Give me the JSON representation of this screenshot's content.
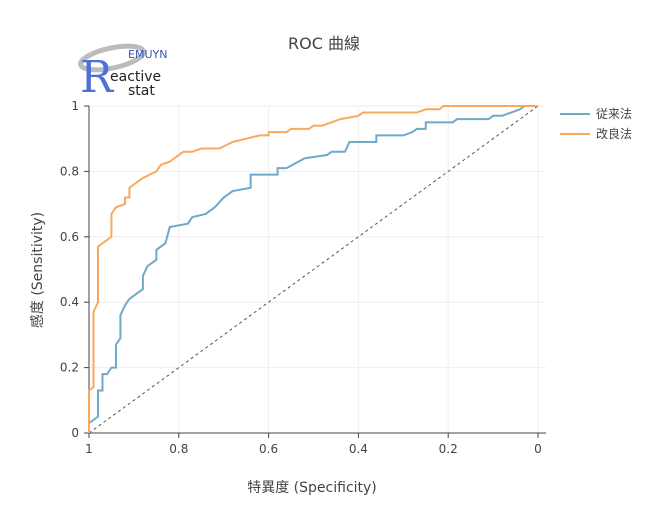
{
  "logo": {
    "letter": "R",
    "brand": "EMUYN",
    "word1": "eactive",
    "word2": "stat"
  },
  "chart_data": {
    "type": "line",
    "title": "ROC 曲線",
    "x_label": "特異度 (Specificity)",
    "y_label": "感度 (Sensitivity)",
    "xlim": [
      1,
      0
    ],
    "ylim": [
      0,
      1
    ],
    "xticks": [
      1,
      0.8,
      0.6,
      0.4,
      0.2,
      0
    ],
    "yticks": [
      0,
      0.2,
      0.4,
      0.6,
      0.8,
      1
    ],
    "grid": true,
    "legend": "right",
    "series": [
      {
        "name": "従来法",
        "color": "#6fa8c9",
        "x": [
          1,
          1,
          0.98,
          0.98,
          0.97,
          0.97,
          0.96,
          0.95,
          0.94,
          0.94,
          0.93,
          0.93,
          0.92,
          0.91,
          0.88,
          0.88,
          0.87,
          0.85,
          0.85,
          0.83,
          0.82,
          0.78,
          0.77,
          0.74,
          0.72,
          0.7,
          0.68,
          0.64,
          0.64,
          0.58,
          0.58,
          0.56,
          0.52,
          0.47,
          0.46,
          0.43,
          0.42,
          0.36,
          0.36,
          0.3,
          0.28,
          0.27,
          0.25,
          0.25,
          0.19,
          0.18,
          0.11,
          0.1,
          0.08,
          0.06,
          0.04,
          0.03,
          0
        ],
        "values": [
          0,
          0.03,
          0.05,
          0.13,
          0.13,
          0.18,
          0.18,
          0.2,
          0.2,
          0.27,
          0.29,
          0.36,
          0.39,
          0.41,
          0.44,
          0.48,
          0.51,
          0.53,
          0.56,
          0.58,
          0.63,
          0.64,
          0.66,
          0.67,
          0.69,
          0.72,
          0.74,
          0.75,
          0.79,
          0.79,
          0.81,
          0.81,
          0.84,
          0.85,
          0.86,
          0.86,
          0.89,
          0.89,
          0.91,
          0.91,
          0.92,
          0.93,
          0.93,
          0.95,
          0.95,
          0.96,
          0.96,
          0.97,
          0.97,
          0.98,
          0.99,
          1,
          1
        ]
      },
      {
        "name": "改良法",
        "color": "#f9a95e",
        "x": [
          1,
          1,
          0.99,
          0.99,
          0.98,
          0.98,
          0.97,
          0.95,
          0.95,
          0.94,
          0.92,
          0.92,
          0.91,
          0.91,
          0.89,
          0.88,
          0.85,
          0.84,
          0.82,
          0.79,
          0.77,
          0.75,
          0.71,
          0.68,
          0.65,
          0.62,
          0.6,
          0.6,
          0.56,
          0.55,
          0.51,
          0.5,
          0.48,
          0.44,
          0.4,
          0.39,
          0.27,
          0.25,
          0.22,
          0.21,
          0
        ],
        "values": [
          0,
          0.13,
          0.14,
          0.37,
          0.4,
          0.57,
          0.58,
          0.6,
          0.67,
          0.69,
          0.7,
          0.72,
          0.72,
          0.75,
          0.77,
          0.78,
          0.8,
          0.82,
          0.83,
          0.86,
          0.86,
          0.87,
          0.87,
          0.89,
          0.9,
          0.91,
          0.91,
          0.92,
          0.92,
          0.93,
          0.93,
          0.94,
          0.94,
          0.96,
          0.97,
          0.98,
          0.98,
          0.99,
          0.99,
          1,
          1
        ]
      }
    ],
    "reference": {
      "x": [
        1,
        0
      ],
      "values": [
        0,
        1
      ],
      "color": "#555555"
    }
  }
}
